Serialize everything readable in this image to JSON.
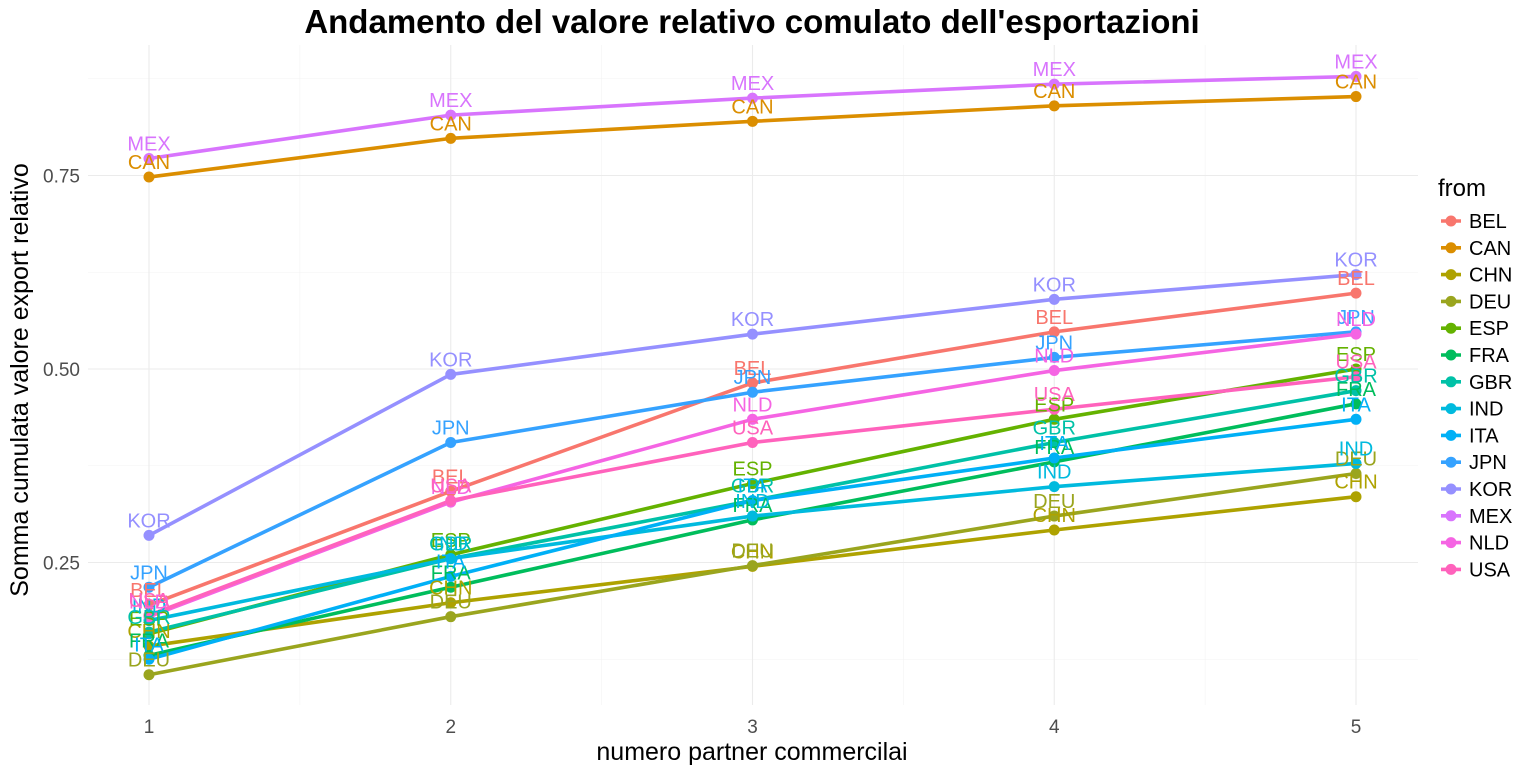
{
  "chart_data": {
    "type": "line",
    "title": "Andamento del valore relativo comulato dell'esportazioni",
    "xlabel": "numero partner commercilai",
    "ylabel": "Somma cumulata valore export relativo",
    "x": [
      1,
      2,
      3,
      4,
      5
    ],
    "x_ticks": [
      "1",
      "2",
      "3",
      "4",
      "5"
    ],
    "y_ticks": [
      "0.25",
      "0.50",
      "0.75"
    ],
    "y_tick_values": [
      0.25,
      0.5,
      0.75
    ],
    "xlim": [
      0.75,
      5.25
    ],
    "ylim": [
      0.07,
      0.9
    ],
    "grid": true,
    "legend_title": "from",
    "legend_position": "right",
    "series": [
      {
        "name": "BEL",
        "color": "#F8766D",
        "values": [
          0.195,
          0.342,
          0.482,
          0.548,
          0.598
        ]
      },
      {
        "name": "CAN",
        "color": "#DB8E00",
        "values": [
          0.748,
          0.798,
          0.82,
          0.84,
          0.852
        ]
      },
      {
        "name": "CHN",
        "color": "#AEA200",
        "values": [
          0.142,
          0.198,
          0.245,
          0.292,
          0.335
        ]
      },
      {
        "name": "DEU",
        "color": "#9AA51E",
        "values": [
          0.105,
          0.18,
          0.246,
          0.31,
          0.365
        ]
      },
      {
        "name": "ESP",
        "color": "#64B200",
        "values": [
          0.158,
          0.26,
          0.352,
          0.435,
          0.5
        ]
      },
      {
        "name": "FRA",
        "color": "#00BD5C",
        "values": [
          0.13,
          0.218,
          0.305,
          0.38,
          0.455
        ]
      },
      {
        "name": "GBR",
        "color": "#00C1A7",
        "values": [
          0.16,
          0.255,
          0.33,
          0.405,
          0.472
        ]
      },
      {
        "name": "IND",
        "color": "#00BADE",
        "values": [
          0.175,
          0.255,
          0.31,
          0.348,
          0.378
        ]
      },
      {
        "name": "ITA",
        "color": "#00B0F6",
        "values": [
          0.125,
          0.232,
          0.33,
          0.385,
          0.435
        ]
      },
      {
        "name": "JPN",
        "color": "#35A2FF",
        "values": [
          0.218,
          0.405,
          0.47,
          0.515,
          0.548
        ]
      },
      {
        "name": "KOR",
        "color": "#9590FF",
        "values": [
          0.285,
          0.493,
          0.545,
          0.59,
          0.622
        ]
      },
      {
        "name": "MEX",
        "color": "#D874FD",
        "values": [
          0.772,
          0.828,
          0.85,
          0.868,
          0.878
        ]
      },
      {
        "name": "NLD",
        "color": "#F564E3",
        "values": [
          0.18,
          0.328,
          0.435,
          0.498,
          0.545
        ]
      },
      {
        "name": "USA",
        "color": "#FF62BC",
        "values": [
          0.182,
          0.33,
          0.405,
          0.448,
          0.49
        ]
      }
    ]
  }
}
